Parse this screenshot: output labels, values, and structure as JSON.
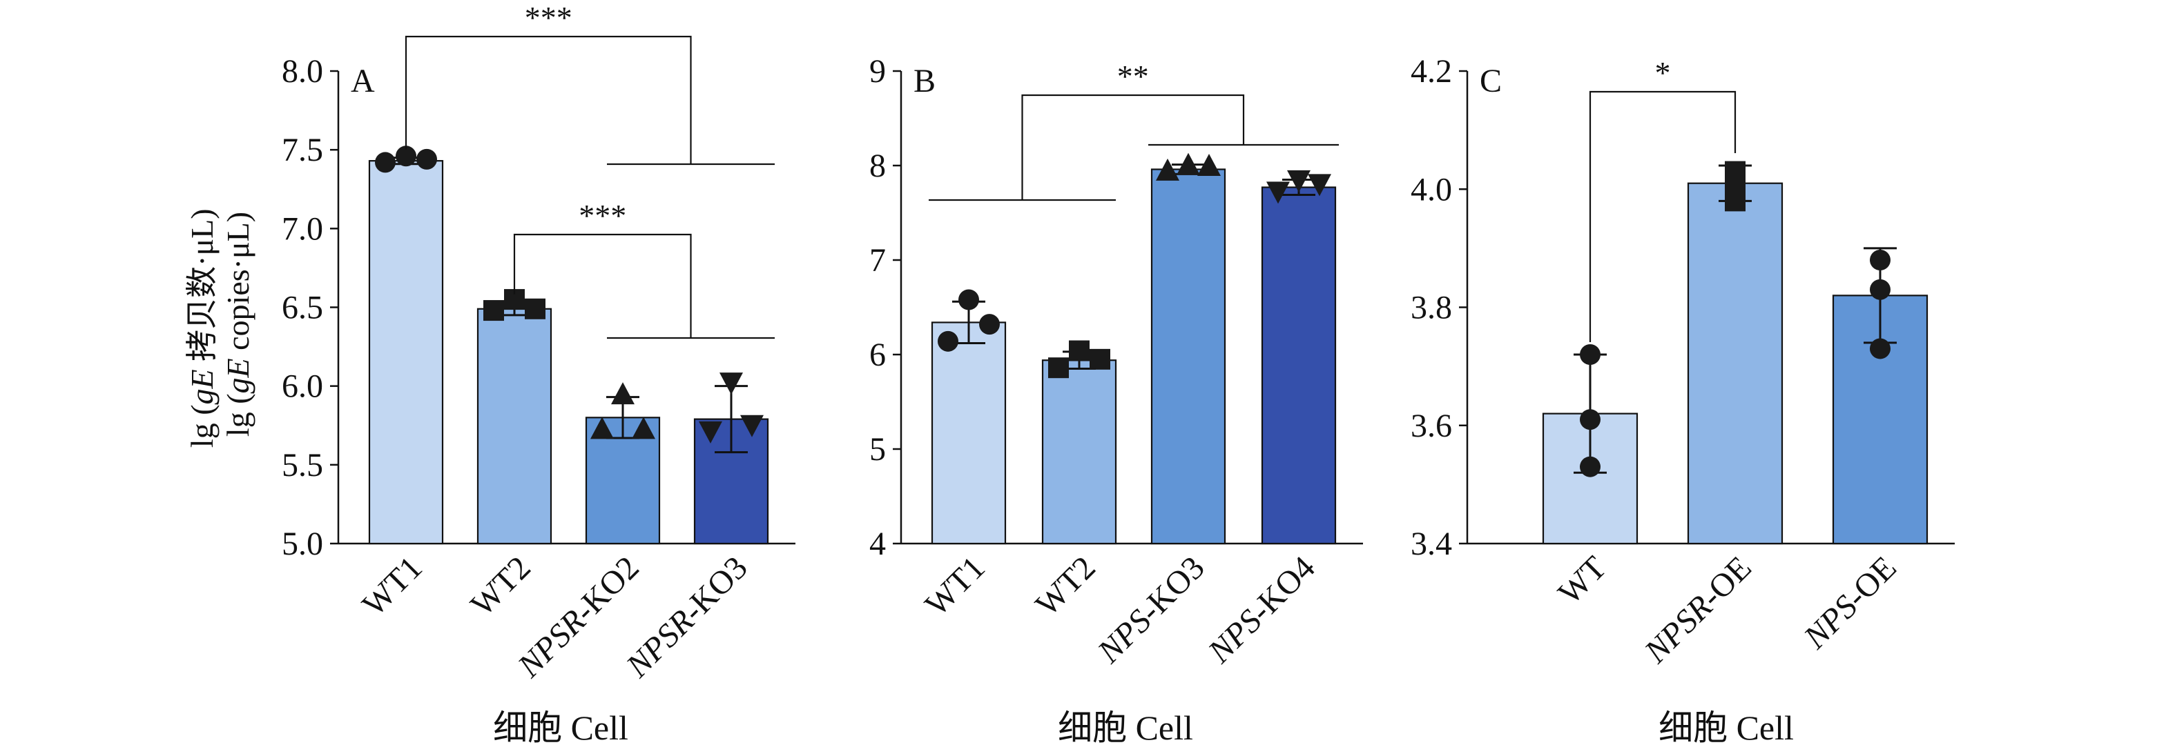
{
  "y_axis_label_line1": "lg (gE 拷贝数·μL)",
  "y_axis_label_line2": "lg (gE copies·μL)",
  "chart_data": [
    {
      "panel": "A",
      "type": "bar",
      "categories": [
        "WT1",
        "WT2",
        "NPSR-KO2",
        "NPSR-KO3"
      ],
      "italic_prefix": [
        "",
        "",
        "NPSR",
        "NPSR"
      ],
      "label_suffix": [
        "",
        "",
        "-KO2",
        "-KO3"
      ],
      "values": [
        7.43,
        6.49,
        5.8,
        5.79
      ],
      "errors": [
        0.02,
        0.04,
        0.13,
        0.21
      ],
      "points": [
        [
          7.42,
          7.46,
          7.44
        ],
        [
          6.48,
          6.55,
          6.49
        ],
        [
          5.73,
          5.95,
          5.73
        ],
        [
          5.71,
          6.02,
          5.75
        ]
      ],
      "markers": [
        "circle",
        "square",
        "triangle-up",
        "triangle-down"
      ],
      "colors": [
        "#c2d7f2",
        "#8fb6e6",
        "#6195d6",
        "#3550ab"
      ],
      "ylim": [
        5.0,
        8.0
      ],
      "yticks": [
        5.0,
        5.5,
        6.0,
        6.5,
        7.0,
        7.5,
        8.0
      ],
      "ytick_labels": [
        "5.0",
        "5.5",
        "6.0",
        "6.5",
        "7.0",
        "7.5",
        "8.0"
      ],
      "xlabel": "细胞 Cell",
      "significance": [
        {
          "label": "***",
          "from": "WT1",
          "to_group": [
            "NPSR-KO2",
            "NPSR-KO3"
          ]
        },
        {
          "label": "***",
          "from": "WT2",
          "to_group": [
            "NPSR-KO2",
            "NPSR-KO3"
          ]
        }
      ]
    },
    {
      "panel": "B",
      "type": "bar",
      "categories": [
        "WT1",
        "WT2",
        "NPS-KO3",
        "NPS-KO4"
      ],
      "italic_prefix": [
        "",
        "",
        "NPS",
        "NPS"
      ],
      "label_suffix": [
        "",
        "",
        "-KO3",
        "-KO4"
      ],
      "values": [
        6.34,
        5.94,
        7.96,
        7.77
      ],
      "errors": [
        0.22,
        0.09,
        0.05,
        0.08
      ],
      "points": [
        [
          6.14,
          6.58,
          6.32
        ],
        [
          5.86,
          6.04,
          5.95
        ],
        [
          7.95,
          8.01,
          8.0
        ],
        [
          7.72,
          7.84,
          7.8
        ]
      ],
      "markers": [
        "circle",
        "square",
        "triangle-up",
        "triangle-down"
      ],
      "colors": [
        "#c2d7f2",
        "#8fb6e6",
        "#6195d6",
        "#3550ab"
      ],
      "ylim": [
        4,
        9
      ],
      "yticks": [
        4,
        5,
        6,
        7,
        8,
        9
      ],
      "ytick_labels": [
        "4",
        "5",
        "6",
        "7",
        "8",
        "9"
      ],
      "xlabel": "细胞 Cell",
      "significance": [
        {
          "label": "**",
          "from_group": [
            "WT1",
            "WT2"
          ],
          "to_group": [
            "NPS-KO3",
            "NPS-KO4"
          ]
        }
      ]
    },
    {
      "panel": "C",
      "type": "bar",
      "categories": [
        "WT",
        "NPSR-OE",
        "NPS-OE"
      ],
      "italic_prefix": [
        "",
        "NPSR",
        "NPS"
      ],
      "label_suffix": [
        "",
        "-OE",
        "-OE"
      ],
      "values": [
        3.62,
        4.01,
        3.82
      ],
      "errors": [
        0.1,
        0.03,
        0.08
      ],
      "points": [
        [
          3.72,
          3.61,
          3.53
        ],
        [
          3.98,
          4.03,
          4.0
        ],
        [
          3.88,
          3.83,
          3.73
        ]
      ],
      "markers": [
        "circle",
        "square",
        "circle"
      ],
      "colors": [
        "#c2d7f2",
        "#8fb6e6",
        "#6195d6"
      ],
      "ylim": [
        3.4,
        4.2
      ],
      "yticks": [
        3.4,
        3.6,
        3.8,
        4.0,
        4.2
      ],
      "ytick_labels": [
        "3.4",
        "3.6",
        "3.8",
        "4.0",
        "4.2"
      ],
      "xlabel": "细胞 Cell",
      "significance": [
        {
          "label": "*",
          "from": "WT",
          "to": "NPSR-OE"
        }
      ]
    }
  ]
}
